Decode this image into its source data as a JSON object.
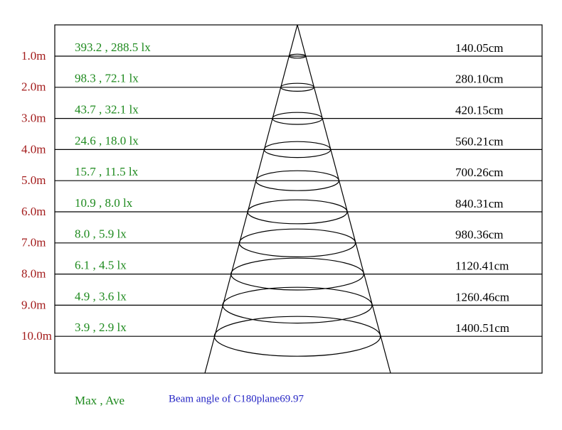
{
  "rows": [
    {
      "distance": "1.0m",
      "illuminance": "393.2 , 288.5 lx",
      "diameter": "140.05cm"
    },
    {
      "distance": "2.0m",
      "illuminance": "98.3 , 72.1 lx",
      "diameter": "280.10cm"
    },
    {
      "distance": "3.0m",
      "illuminance": "43.7 , 32.1 lx",
      "diameter": "420.15cm"
    },
    {
      "distance": "4.0m",
      "illuminance": "24.6 , 18.0 lx",
      "diameter": "560.21cm"
    },
    {
      "distance": "5.0m",
      "illuminance": "15.7 , 11.5 lx",
      "diameter": "700.26cm"
    },
    {
      "distance": "6.0m",
      "illuminance": "10.9 , 8.0 lx",
      "diameter": "840.31cm"
    },
    {
      "distance": "7.0m",
      "illuminance": "8.0 , 5.9 lx",
      "diameter": "980.36cm"
    },
    {
      "distance": "8.0m",
      "illuminance": "6.1 , 4.5 lx",
      "diameter": "1120.41cm"
    },
    {
      "distance": "9.0m",
      "illuminance": "4.9 , 3.6 lx",
      "diameter": "1260.46cm"
    },
    {
      "distance": "10.0m",
      "illuminance": "3.9 , 2.9 lx",
      "diameter": "1400.51cm"
    }
  ],
  "legend": "Max , Ave",
  "caption": "Beam angle of C180plane69.97"
}
